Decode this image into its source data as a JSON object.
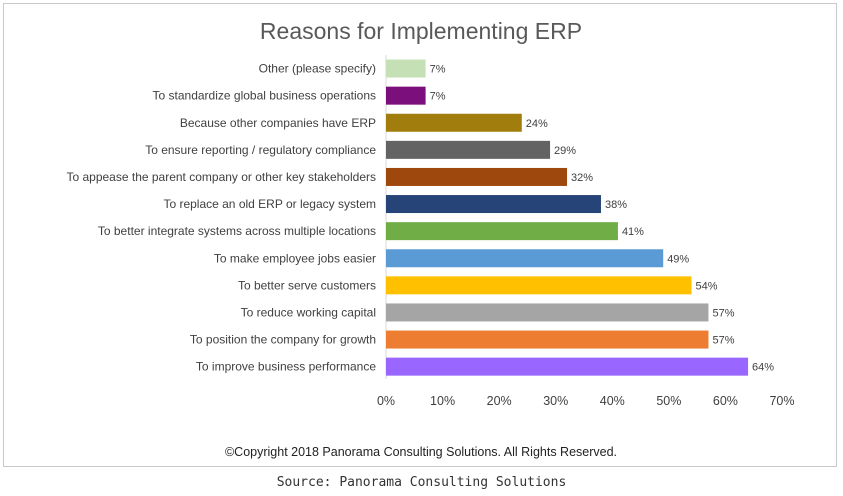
{
  "chart_data": {
    "type": "bar",
    "orientation": "horizontal",
    "title": "Reasons for Implementing ERP",
    "categories": [
      "Other (please specify)",
      "To standardize global business operations",
      "Because other companies have ERP",
      "To ensure reporting / regulatory compliance",
      "To appease the parent company or other key stakeholders",
      "To replace an old ERP or legacy system",
      "To better integrate systems across multiple locations",
      "To make employee jobs easier",
      "To better serve customers",
      "To reduce working capital",
      "To position the company for growth",
      "To improve business performance"
    ],
    "values": [
      7,
      7,
      24,
      29,
      32,
      38,
      41,
      49,
      54,
      57,
      57,
      64
    ],
    "value_labels": [
      "7%",
      "7%",
      "24%",
      "29%",
      "32%",
      "38%",
      "41%",
      "49%",
      "54%",
      "57%",
      "57%",
      "64%"
    ],
    "colors": [
      "#c5e0b4",
      "#7b0f7b",
      "#a07d0c",
      "#636363",
      "#9e480e",
      "#264478",
      "#70ad47",
      "#5b9bd5",
      "#ffc000",
      "#a5a5a5",
      "#ed7d31",
      "#9966ff"
    ],
    "xlim": [
      0,
      70
    ],
    "xticks": [
      "0%",
      "10%",
      "20%",
      "30%",
      "40%",
      "50%",
      "60%",
      "70%"
    ],
    "xlabel": "",
    "ylabel": "",
    "grid": false,
    "legend": "none"
  },
  "footer": {
    "copyright": "©Copyright 2018 Panorama Consulting Solutions.  All Rights Reserved."
  },
  "caption": {
    "source": "Source: Panorama Consulting Solutions"
  }
}
